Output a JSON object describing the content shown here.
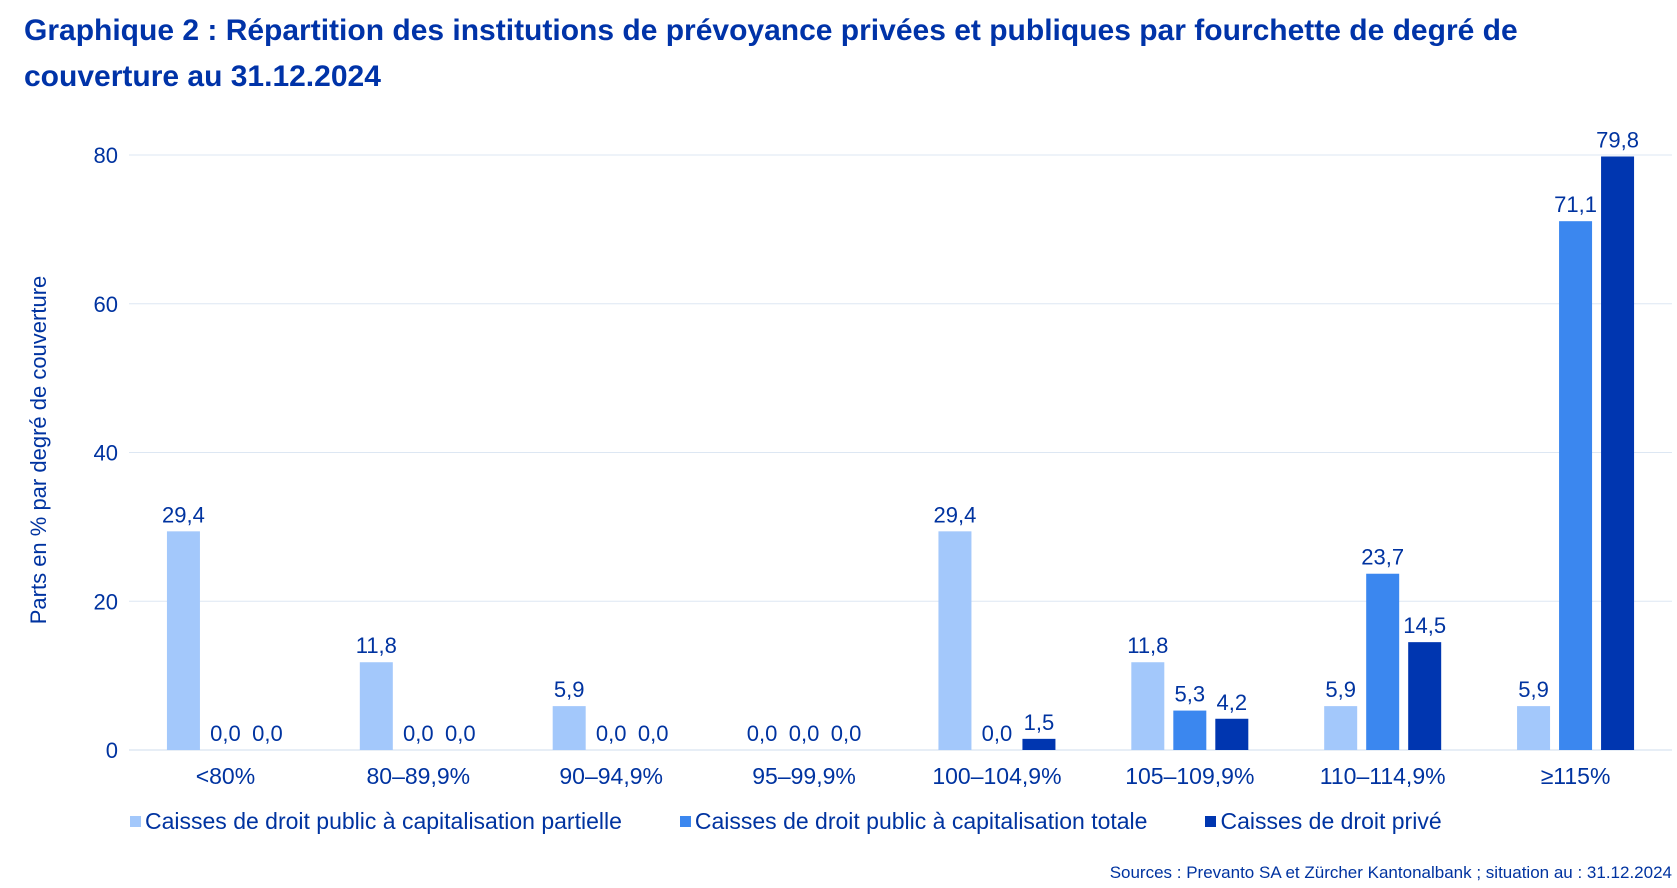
{
  "chart_data": {
    "type": "bar",
    "title": "Graphique 2 : Répartition des institutions de prévoyance privées et publiques par fourchette de degré de couverture au 31.12.2024",
    "xlabel": "",
    "ylabel": "Parts en % par degré de couverture",
    "ylim": [
      0,
      80
    ],
    "yticks": [
      0,
      20,
      40,
      60,
      80
    ],
    "grid": true,
    "legend_position": "bottom",
    "categories": [
      "<80%",
      "80–89,9%",
      "90–94,9%",
      "95–99,9%",
      "100–104,9%",
      "105–109,9%",
      "110–114,9%",
      "≥115%"
    ],
    "series": [
      {
        "name": "Caisses de droit public à capitalisation partielle",
        "color": "#a3c8fb",
        "values": [
          29.4,
          11.8,
          5.9,
          0.0,
          29.4,
          11.8,
          5.9,
          5.9
        ]
      },
      {
        "name": "Caisses de droit public à capitalisation totale",
        "color": "#3b87ef",
        "values": [
          0.0,
          0.0,
          0.0,
          0.0,
          0.0,
          5.3,
          23.7,
          71.1
        ]
      },
      {
        "name": "Caisses de droit privé",
        "color": "#0036b0",
        "values": [
          0.0,
          0.0,
          0.0,
          0.0,
          1.5,
          4.2,
          14.5,
          79.8
        ]
      }
    ],
    "source": "Sources : Prevanto SA et Zürcher Kantonalbank ; situation au : 31.12.2024"
  }
}
